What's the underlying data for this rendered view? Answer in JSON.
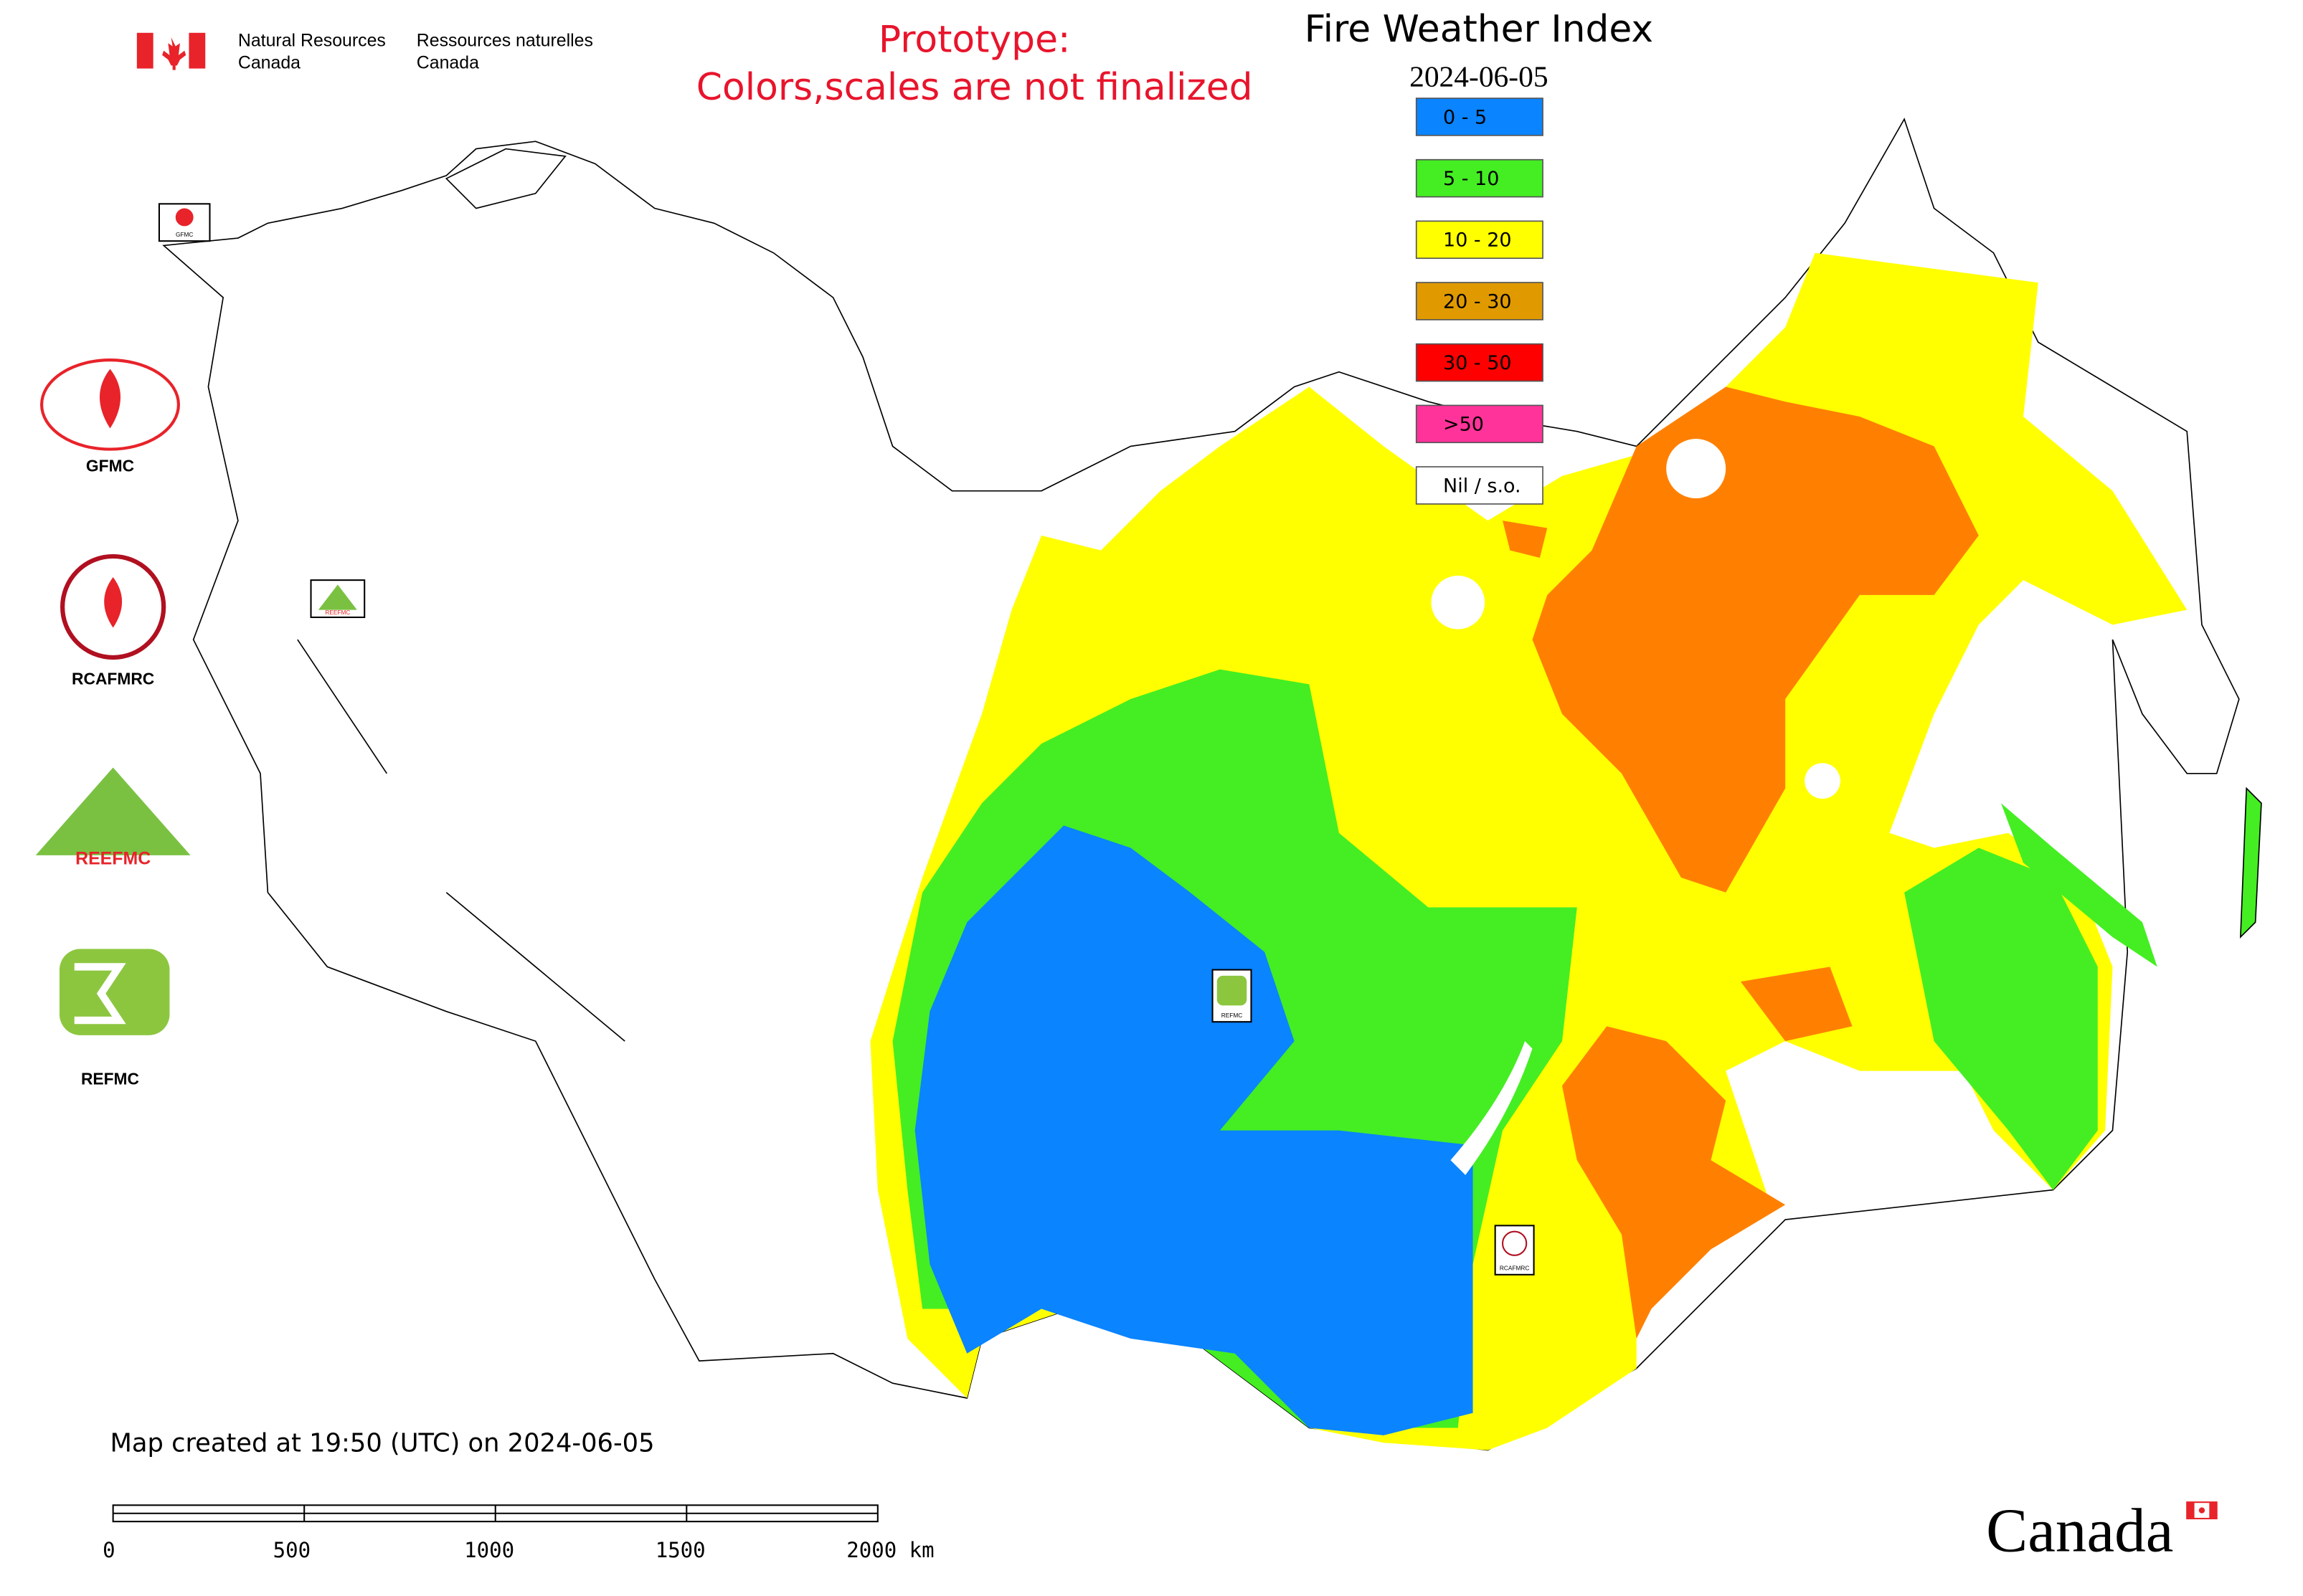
{
  "header": {
    "org_en": [
      "Natural Resources",
      "Canada"
    ],
    "org_fr": [
      "Ressources naturelles",
      "Canada"
    ]
  },
  "notice": [
    "Prototype:",
    "Colors,scales are not finalized"
  ],
  "legend": {
    "title": "Fire Weather Index",
    "date": "2024-06-05",
    "items": [
      {
        "label": "0 - 5",
        "color": "#0a84ff"
      },
      {
        "label": "5 - 10",
        "color": "#44ee22"
      },
      {
        "label": "10 - 20",
        "color": "#ffff00"
      },
      {
        "label": "20 - 30",
        "color": "#e09a00"
      },
      {
        "label": "30 - 50",
        "color": "#ff0000"
      },
      {
        "label": ">50",
        "color": "#ff3399"
      },
      {
        "label": "Nil / s.o.",
        "color": "#ffffff"
      }
    ]
  },
  "logos": [
    "GFMC",
    "RCAFMRC",
    "REEFMC",
    "REFMC"
  ],
  "footer": {
    "created": "Map created at 19:50 (UTC) on 2024-06-05",
    "scale_labels": [
      "0",
      "500",
      "1000",
      "1500",
      "2000 km"
    ]
  },
  "wordmark": "Canada"
}
